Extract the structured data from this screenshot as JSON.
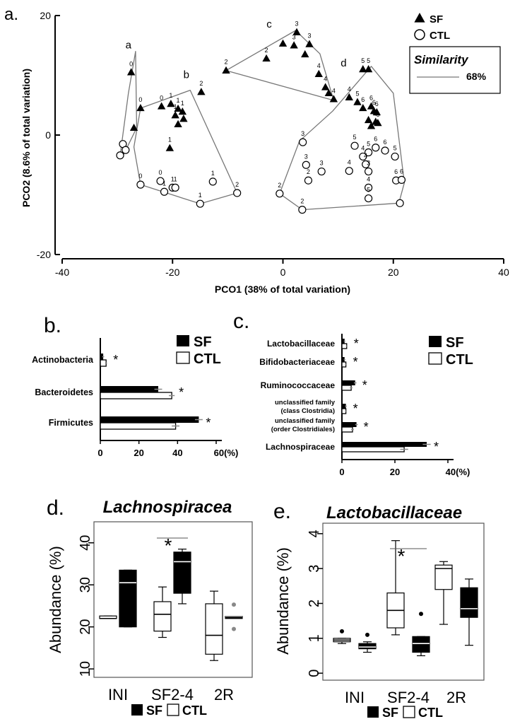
{
  "colors": {
    "sf": "#000000",
    "ctl": "#ffffff",
    "axis": "#000000",
    "ellipse": "#777777",
    "box_bg": "#ffffff"
  },
  "chart_data": [
    {
      "panel": "a.",
      "type": "scatter",
      "xlabel": "PCO1 (38% of total variation)",
      "ylabel": "PCO2 (8.6% of total variation)",
      "xlim": [
        -40,
        40
      ],
      "ylim": [
        -20,
        20
      ],
      "xticks": [
        "-40",
        "-20",
        "0",
        "20",
        "40"
      ],
      "yticks": [
        "20",
        "0",
        "-20"
      ],
      "legend": {
        "entries": [
          "SF",
          "CTL"
        ],
        "similarity_title": "Similarity",
        "similarity_value": "68%"
      },
      "cluster_labels": [
        {
          "text": "a",
          "x": -28,
          "y": 14.5
        },
        {
          "text": "b",
          "x": -17.5,
          "y": 9.5
        },
        {
          "text": "c",
          "x": -2.5,
          "y": 18
        },
        {
          "text": "d",
          "x": 11,
          "y": 11.5
        }
      ],
      "clusters": {
        "a": [
          [
            -29.5,
            -3.4
          ],
          [
            -28,
            7
          ],
          [
            -26.7,
            14
          ],
          [
            -26.5,
            1.2
          ],
          [
            -29,
            -3.5
          ]
        ],
        "b": [
          [
            -25.8,
            4.5
          ],
          [
            -16.8,
            7.5
          ],
          [
            -8.3,
            -9.7
          ],
          [
            -15,
            -11.5
          ],
          [
            -25.8,
            -8.3
          ],
          [
            -27,
            -2
          ]
        ],
        "c": [
          [
            -10.3,
            10.8
          ],
          [
            2.3,
            17.5
          ],
          [
            6.7,
            13.6
          ],
          [
            9.2,
            5.8
          ],
          [
            -10.3,
            10.8
          ]
        ],
        "d": [
          [
            16,
            11.5
          ],
          [
            20,
            7
          ],
          [
            22,
            -8
          ],
          [
            21,
            -11.4
          ],
          [
            3.5,
            -12.5
          ],
          [
            -0.6,
            -9.8
          ],
          [
            3,
            -1
          ],
          [
            9,
            4
          ]
        ]
      },
      "series": [
        {
          "name": "SF",
          "points": [
            {
              "x": -27.5,
              "y": 10.5,
              "label": "0"
            },
            {
              "x": -27,
              "y": 1.2,
              "label": ""
            },
            {
              "x": -25.8,
              "y": 4.5,
              "label": "0"
            },
            {
              "x": -22,
              "y": 4.8,
              "label": "0"
            },
            {
              "x": -20.3,
              "y": 5.2,
              "label": "1"
            },
            {
              "x": -19.5,
              "y": 3.3,
              "label": "1"
            },
            {
              "x": -19,
              "y": 4.4,
              "label": "1"
            },
            {
              "x": -18.2,
              "y": 3.9,
              "label": "1"
            },
            {
              "x": -18,
              "y": 2.7,
              "label": ""
            },
            {
              "x": -19,
              "y": 1.8,
              "label": ""
            },
            {
              "x": -20.5,
              "y": -2.2,
              "label": "1"
            },
            {
              "x": -14.8,
              "y": 7.2,
              "label": "2"
            },
            {
              "x": -10.3,
              "y": 10.8,
              "label": "2"
            },
            {
              "x": -3,
              "y": 12.8,
              "label": "2"
            },
            {
              "x": 0,
              "y": 15.3,
              "label": ""
            },
            {
              "x": 2.5,
              "y": 17.2,
              "label": "3"
            },
            {
              "x": 2,
              "y": 15,
              "label": "3"
            },
            {
              "x": 4.8,
              "y": 15.2,
              "label": "3"
            },
            {
              "x": 4,
              "y": 13.5,
              "label": ""
            },
            {
              "x": 6.5,
              "y": 10.2,
              "label": "4"
            },
            {
              "x": 7.7,
              "y": 8,
              "label": "4"
            },
            {
              "x": 8.3,
              "y": 7,
              "label": ""
            },
            {
              "x": 9.2,
              "y": 6,
              "label": "4"
            },
            {
              "x": 14.5,
              "y": 11,
              "label": "5"
            },
            {
              "x": 15.5,
              "y": 11,
              "label": "5"
            },
            {
              "x": 12,
              "y": 6.3,
              "label": "4"
            },
            {
              "x": 13.5,
              "y": 5.5,
              "label": "5"
            },
            {
              "x": 14.5,
              "y": 4.5,
              "label": "6"
            },
            {
              "x": 16,
              "y": 4.8,
              "label": "6"
            },
            {
              "x": 16.5,
              "y": 4,
              "label": "6"
            },
            {
              "x": 17,
              "y": 3.8,
              "label": "6"
            },
            {
              "x": 15.5,
              "y": 2.5,
              "label": ""
            },
            {
              "x": 16.8,
              "y": 2.2,
              "label": "5"
            },
            {
              "x": 17.2,
              "y": 2,
              "label": "6"
            },
            {
              "x": 16,
              "y": 1.5,
              "label": ""
            }
          ]
        },
        {
          "name": "CTL",
          "points": [
            {
              "x": -29,
              "y": -1.5,
              "label": ""
            },
            {
              "x": -28.5,
              "y": -2.5,
              "label": ""
            },
            {
              "x": -29.5,
              "y": -3.4,
              "label": ""
            },
            {
              "x": -25.8,
              "y": -8.3,
              "label": "0"
            },
            {
              "x": -22.2,
              "y": -7.7,
              "label": "0"
            },
            {
              "x": -21.5,
              "y": -9.5,
              "label": "1"
            },
            {
              "x": -20,
              "y": -8.8,
              "label": "1"
            },
            {
              "x": -19.5,
              "y": -8.8,
              "label": "1"
            },
            {
              "x": -15,
              "y": -11.5,
              "label": "1"
            },
            {
              "x": -12.7,
              "y": -7.8,
              "label": "1"
            },
            {
              "x": -8.3,
              "y": -9.7,
              "label": "2"
            },
            {
              "x": -0.6,
              "y": -9.8,
              "label": "2"
            },
            {
              "x": 3.5,
              "y": -12.5,
              "label": "2"
            },
            {
              "x": 3.6,
              "y": -1.2,
              "label": "3"
            },
            {
              "x": 4.2,
              "y": -5,
              "label": "3"
            },
            {
              "x": 4.6,
              "y": -7.6,
              "label": "2"
            },
            {
              "x": 7,
              "y": -6.1,
              "label": "3"
            },
            {
              "x": 12,
              "y": -6,
              "label": "4"
            },
            {
              "x": 13,
              "y": -1.8,
              "label": "5"
            },
            {
              "x": 14.5,
              "y": -3.6,
              "label": "4"
            },
            {
              "x": 15.5,
              "y": -2.9,
              "label": "5"
            },
            {
              "x": 15,
              "y": -4.9,
              "label": "4"
            },
            {
              "x": 15.5,
              "y": -6.1,
              "label": "3"
            },
            {
              "x": 15.5,
              "y": -8.8,
              "label": "4"
            },
            {
              "x": 15.5,
              "y": -10.6,
              "label": "5"
            },
            {
              "x": 16.8,
              "y": -2.1,
              "label": "6"
            },
            {
              "x": 18.5,
              "y": -2.6,
              "label": "6"
            },
            {
              "x": 20.3,
              "y": -3.6,
              "label": "5"
            },
            {
              "x": 20.5,
              "y": -7.6,
              "label": "6"
            },
            {
              "x": 21.2,
              "y": -11.4,
              "label": ""
            },
            {
              "x": 21.5,
              "y": -7.5,
              "label": "6"
            }
          ]
        }
      ]
    },
    {
      "panel": "b.",
      "type": "bar",
      "orientation": "horizontal",
      "categories": [
        "Actinobacteria",
        "Bacteroidetes",
        "Firmicutes"
      ],
      "series": [
        {
          "name": "SF",
          "values": [
            1.5,
            30,
            51
          ]
        },
        {
          "name": "CTL",
          "values": [
            3,
            37,
            39
          ]
        }
      ],
      "errors": {
        "SF": [
          0.5,
          2,
          2
        ],
        "CTL": [
          0.5,
          1.5,
          2
        ]
      },
      "significance": [
        "*",
        "*",
        "*"
      ],
      "xlim": [
        0,
        60
      ],
      "xticks": [
        "0",
        "20",
        "40",
        "60(%)"
      ],
      "legend": [
        "SF",
        "CTL"
      ]
    },
    {
      "panel": "c.",
      "type": "bar",
      "orientation": "horizontal",
      "categories": [
        "Lactobacillaceae",
        "Bifidobacteriaceae",
        "Ruminococcaceae",
        "unclassified family",
        "unclassified family",
        "Lachnospiraceae"
      ],
      "category_sublabels": [
        "",
        "",
        "",
        "(class Clostridia)",
        "(order Clostridiales)",
        ""
      ],
      "series": [
        {
          "name": "SF",
          "values": [
            1,
            1,
            5,
            1.5,
            5.5,
            32
          ]
        },
        {
          "name": "CTL",
          "values": [
            1.8,
            1.5,
            3.5,
            1.5,
            4,
            23.5
          ]
        }
      ],
      "errors": {
        "SF": [
          0.3,
          0.3,
          0.5,
          0.3,
          0.5,
          1.5
        ],
        "CTL": [
          0.3,
          0.3,
          0.5,
          0.3,
          0.5,
          1.5
        ]
      },
      "significance": [
        "*",
        "*",
        "*",
        "*",
        "*",
        "*"
      ],
      "xlim": [
        0,
        40
      ],
      "xticks": [
        "0",
        "20",
        "40(%)"
      ],
      "legend": [
        "SF",
        "CTL"
      ]
    },
    {
      "panel": "d.",
      "type": "box",
      "title": "Lachnospiracea",
      "ylabel": "Abundance (%)",
      "ylim": [
        8,
        45
      ],
      "yticks": [
        10,
        20,
        30,
        40
      ],
      "categories": [
        "INI",
        "SF2-4",
        "2R"
      ],
      "boxes": [
        {
          "group": "INI",
          "series": "CTL",
          "min": 22,
          "q1": 22,
          "median": 22,
          "q3": 22.6,
          "max": 22.6
        },
        {
          "group": "INI",
          "series": "SF",
          "min": 20,
          "q1": 20,
          "median": 30.5,
          "q3": 33.5,
          "max": 33.5
        },
        {
          "group": "SF2-4",
          "series": "CTL",
          "min": 17.5,
          "q1": 19,
          "median": 23,
          "q3": 26,
          "max": 29.5
        },
        {
          "group": "SF2-4",
          "series": "SF",
          "min": 25.5,
          "q1": 28,
          "median": 35.5,
          "q3": 37.8,
          "max": 38.5
        },
        {
          "group": "2R",
          "series": "CTL",
          "min": 12,
          "q1": 13.5,
          "median": 18,
          "q3": 25.5,
          "max": 28.5
        },
        {
          "group": "2R",
          "series": "SF",
          "min": 22.5,
          "q1": 22.5,
          "median": 22.5,
          "q3": 22.5,
          "max": 22.5,
          "outliers": [
            19.5,
            25.3
          ]
        }
      ],
      "significance": [
        {
          "between": "SF2-4",
          "text": "*"
        }
      ],
      "legend": [
        "SF",
        "CTL"
      ]
    },
    {
      "panel": "e.",
      "type": "box",
      "title": "Lactobacillaceae",
      "ylabel": "Abundance (%)",
      "ylim": [
        -0.2,
        4.3
      ],
      "yticks": [
        0,
        1,
        2,
        3,
        4
      ],
      "categories": [
        "INI",
        "SF2-4",
        "2R"
      ],
      "boxes": [
        {
          "group": "INI",
          "series": "CTL",
          "min": 0.85,
          "q1": 0.9,
          "median": 0.95,
          "q3": 1,
          "max": 1,
          "outliers": [
            1.2
          ]
        },
        {
          "group": "INI",
          "series": "SF",
          "min": 0.6,
          "q1": 0.7,
          "median": 0.75,
          "q3": 0.85,
          "max": 0.9,
          "outliers": [
            1.1
          ]
        },
        {
          "group": "SF2-4",
          "series": "CTL",
          "min": 1.1,
          "q1": 1.3,
          "median": 1.8,
          "q3": 2.3,
          "max": 3.8
        },
        {
          "group": "SF2-4",
          "series": "SF",
          "min": 0.5,
          "q1": 0.6,
          "median": 0.85,
          "q3": 1.05,
          "max": 1.05,
          "outliers": [
            1.7
          ]
        },
        {
          "group": "2R",
          "series": "CTL",
          "min": 1.4,
          "q1": 2.4,
          "median": 3,
          "q3": 3.1,
          "max": 3.2
        },
        {
          "group": "2R",
          "series": "SF",
          "min": 0.8,
          "q1": 1.6,
          "median": 1.85,
          "q3": 2.45,
          "max": 2.7
        }
      ],
      "significance": [
        {
          "between": "SF2-4",
          "text": "*"
        }
      ],
      "legend": [
        "SF",
        "CTL"
      ]
    }
  ]
}
